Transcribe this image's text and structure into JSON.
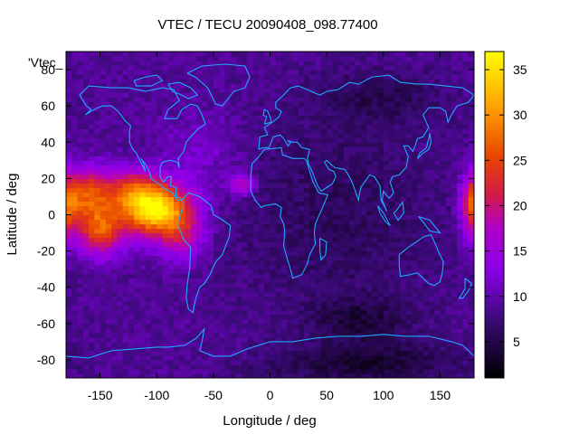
{
  "chart_data": {
    "type": "heatmap",
    "title": "VTEC / TECU 20090408_098.77400",
    "xlabel": "Longitude / deg",
    "ylabel": "Latitude / deg",
    "xlim": [
      -180,
      180
    ],
    "ylim": [
      -90,
      90
    ],
    "x_ticks": [
      -150,
      -100,
      -50,
      0,
      50,
      100,
      150
    ],
    "y_ticks": [
      -80,
      -60,
      -40,
      -20,
      0,
      20,
      40,
      60,
      80
    ],
    "series_key": "'Vtec_",
    "colorbar": {
      "range": [
        1,
        37
      ],
      "ticks": [
        5,
        10,
        15,
        20,
        25,
        30,
        35
      ],
      "palette": "black-blue-purple-red-orange-yellow"
    },
    "overlay": "coastlines",
    "coastline_color": "#1fa8ff",
    "background_level": 9,
    "hotspots": [
      {
        "lon": -100,
        "lat": 2,
        "value": 36
      },
      {
        "lon": -150,
        "lat": -10,
        "value": 32
      },
      {
        "lon": -160,
        "lat": 10,
        "value": 27
      },
      {
        "lon": 178,
        "lat": 5,
        "value": 22
      },
      {
        "lon": -25,
        "lat": 17,
        "value": 20
      }
    ],
    "lows": [
      {
        "lon": 100,
        "lat": -80,
        "value": 2
      },
      {
        "lon": 80,
        "lat": -58,
        "value": 3
      },
      {
        "lon": 100,
        "lat": 65,
        "value": 5
      }
    ]
  }
}
